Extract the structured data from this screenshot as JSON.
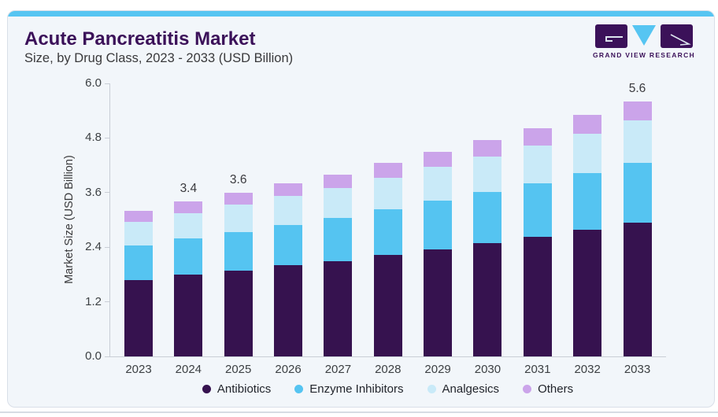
{
  "header": {
    "title": "Acute Pancreatitis Market",
    "subtitle": "Size, by Drug Class, 2023 - 2033 (USD Billion)"
  },
  "brand": {
    "logo_text": "GRAND VIEW RESEARCH"
  },
  "colors": {
    "accent_strip": "#56C5F2",
    "card_bg": "#F2F6FA",
    "title_purple": "#3B1159",
    "axis_line": "#C9CED6"
  },
  "chart_data": {
    "type": "bar",
    "variant": "stacked",
    "title": "Acute Pancreatitis Market",
    "subtitle": "Size, by Drug Class, 2023 - 2033 (USD Billion)",
    "xlabel": "",
    "ylabel": "Market Size (USD Billion)",
    "ylim": [
      0,
      6
    ],
    "yticks": [
      0,
      1.2,
      2.4,
      3.6,
      4.8,
      6
    ],
    "grid": false,
    "legend_position": "bottom",
    "categories": [
      "2023",
      "2024",
      "2025",
      "2026",
      "2027",
      "2028",
      "2029",
      "2030",
      "2031",
      "2032",
      "2033"
    ],
    "series": [
      {
        "name": "Antibiotics",
        "color": "#36124F",
        "values": [
          1.68,
          1.79,
          1.89,
          2.0,
          2.1,
          2.23,
          2.36,
          2.49,
          2.63,
          2.78,
          2.94
        ]
      },
      {
        "name": "Enzyme Inhibitors",
        "color": "#55C4F1",
        "values": [
          0.75,
          0.8,
          0.85,
          0.89,
          0.94,
          1.0,
          1.06,
          1.12,
          1.18,
          1.25,
          1.32
        ]
      },
      {
        "name": "Analgesics",
        "color": "#C9EAF8",
        "values": [
          0.53,
          0.56,
          0.59,
          0.63,
          0.66,
          0.7,
          0.74,
          0.78,
          0.83,
          0.87,
          0.92
        ]
      },
      {
        "name": "Others",
        "color": "#CBA4EA",
        "values": [
          0.24,
          0.26,
          0.27,
          0.29,
          0.3,
          0.32,
          0.34,
          0.36,
          0.38,
          0.4,
          0.42
        ]
      }
    ],
    "bar_total_labels": {
      "2024": "3.4",
      "2025": "3.6",
      "2033": "5.6"
    }
  }
}
